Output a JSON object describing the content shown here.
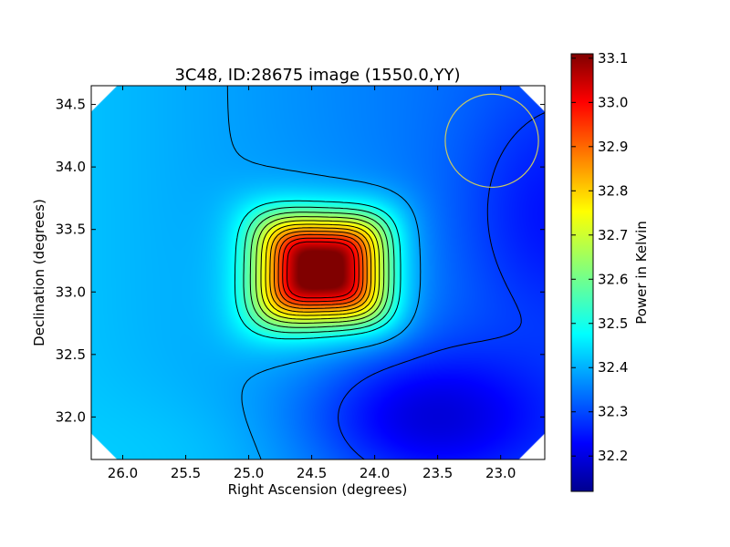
{
  "chart_data": {
    "type": "heatmap",
    "title": "3C48, ID:28675 image (1550.0,YY)",
    "xlabel": "Right Ascension (degrees)",
    "ylabel": "Declination (degrees)",
    "colorbar_label": "Power in Kelvin",
    "xlim": [
      26.25,
      22.65
    ],
    "ylim": [
      31.66,
      34.65
    ],
    "x_ticks": [
      "26.0",
      "25.5",
      "25.0",
      "24.5",
      "24.0",
      "23.5",
      "23.0"
    ],
    "x_tick_values": [
      26.0,
      25.5,
      25.0,
      24.5,
      24.0,
      23.5,
      23.0
    ],
    "y_ticks": [
      "32.0",
      "32.5",
      "33.0",
      "33.5",
      "34.0",
      "34.5"
    ],
    "y_tick_values": [
      32.0,
      32.5,
      33.0,
      33.5,
      34.0,
      34.5
    ],
    "colorbar_range": [
      32.12,
      33.11
    ],
    "colorbar_ticks": [
      "32.2",
      "32.3",
      "32.4",
      "32.5",
      "32.6",
      "32.7",
      "32.8",
      "32.9",
      "33.0",
      "33.1"
    ],
    "colorbar_tick_values": [
      32.2,
      32.3,
      32.4,
      32.5,
      32.6,
      32.7,
      32.8,
      32.9,
      33.0,
      33.1
    ],
    "colormap": "jet",
    "peak": {
      "ra": 24.42,
      "dec": 33.18,
      "value": 33.1
    },
    "minimum_region": {
      "ra": 23.6,
      "dec": 32.0,
      "value": 32.15
    },
    "beam_circle": {
      "ra": 23.07,
      "dec": 34.21,
      "radius_deg": 0.37,
      "color": "#c8c864"
    },
    "contour_levels": [
      32.2,
      32.3,
      32.4,
      32.5,
      32.55,
      32.6,
      32.65,
      32.7,
      32.75,
      32.8,
      32.85,
      32.9,
      32.95,
      33.0
    ],
    "grid": false
  }
}
